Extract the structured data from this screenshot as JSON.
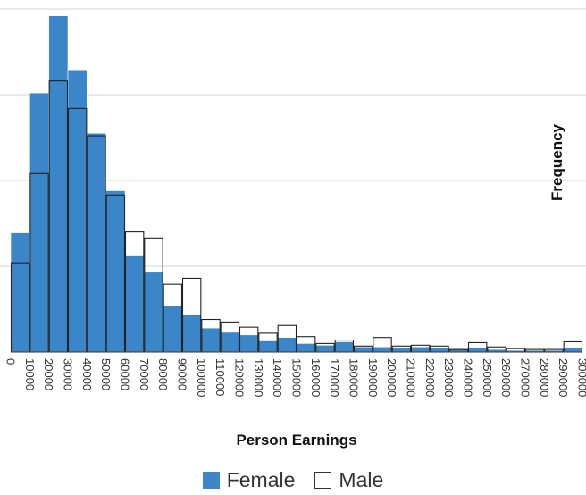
{
  "chart_data": {
    "type": "bar",
    "xlabel": "Person Earnings",
    "ylabel": "Frequency",
    "x_ticks": [
      "0",
      "10000",
      "20000",
      "30000",
      "40000",
      "50000",
      "60000",
      "70000",
      "80000",
      "90000",
      "100000",
      "110000",
      "120000",
      "130000",
      "140000",
      "150000",
      "160000",
      "170000",
      "180000",
      "190000",
      "200000",
      "210000",
      "220000",
      "230000",
      "240000",
      "250000",
      "260000",
      "270000",
      "280000",
      "290000",
      "300000"
    ],
    "bin_edges": [
      0,
      10000,
      20000,
      30000,
      40000,
      50000,
      60000,
      70000,
      80000,
      90000,
      100000,
      110000,
      120000,
      130000,
      140000,
      150000,
      160000,
      170000,
      180000,
      190000,
      200000,
      210000,
      220000,
      230000,
      240000,
      250000,
      260000,
      270000,
      280000,
      290000,
      300000
    ],
    "y_grid": [
      1,
      2,
      3,
      4
    ],
    "ylim": [
      0,
      4
    ],
    "grid": true,
    "legend_position": "bottom",
    "series": [
      {
        "name": "Female",
        "style": "filled",
        "color": "#3a86c8",
        "values": [
          1.39,
          3.02,
          3.92,
          3.29,
          2.55,
          1.88,
          1.13,
          0.94,
          0.54,
          0.44,
          0.28,
          0.23,
          0.2,
          0.13,
          0.17,
          0.1,
          0.08,
          0.12,
          0.06,
          0.06,
          0.05,
          0.06,
          0.05,
          0.03,
          0.05,
          0.03,
          0.02,
          0.02,
          0.02,
          0.05
        ]
      },
      {
        "name": "Male",
        "style": "outline",
        "color": "#ffffff",
        "values": [
          1.04,
          2.08,
          3.16,
          2.84,
          2.52,
          1.83,
          1.4,
          1.33,
          0.79,
          0.86,
          0.38,
          0.35,
          0.29,
          0.22,
          0.31,
          0.18,
          0.1,
          0.14,
          0.07,
          0.17,
          0.07,
          0.08,
          0.07,
          0.03,
          0.11,
          0.06,
          0.04,
          0.03,
          0.03,
          0.12
        ]
      }
    ]
  },
  "legend": {
    "female_label": "Female",
    "male_label": "Male"
  }
}
